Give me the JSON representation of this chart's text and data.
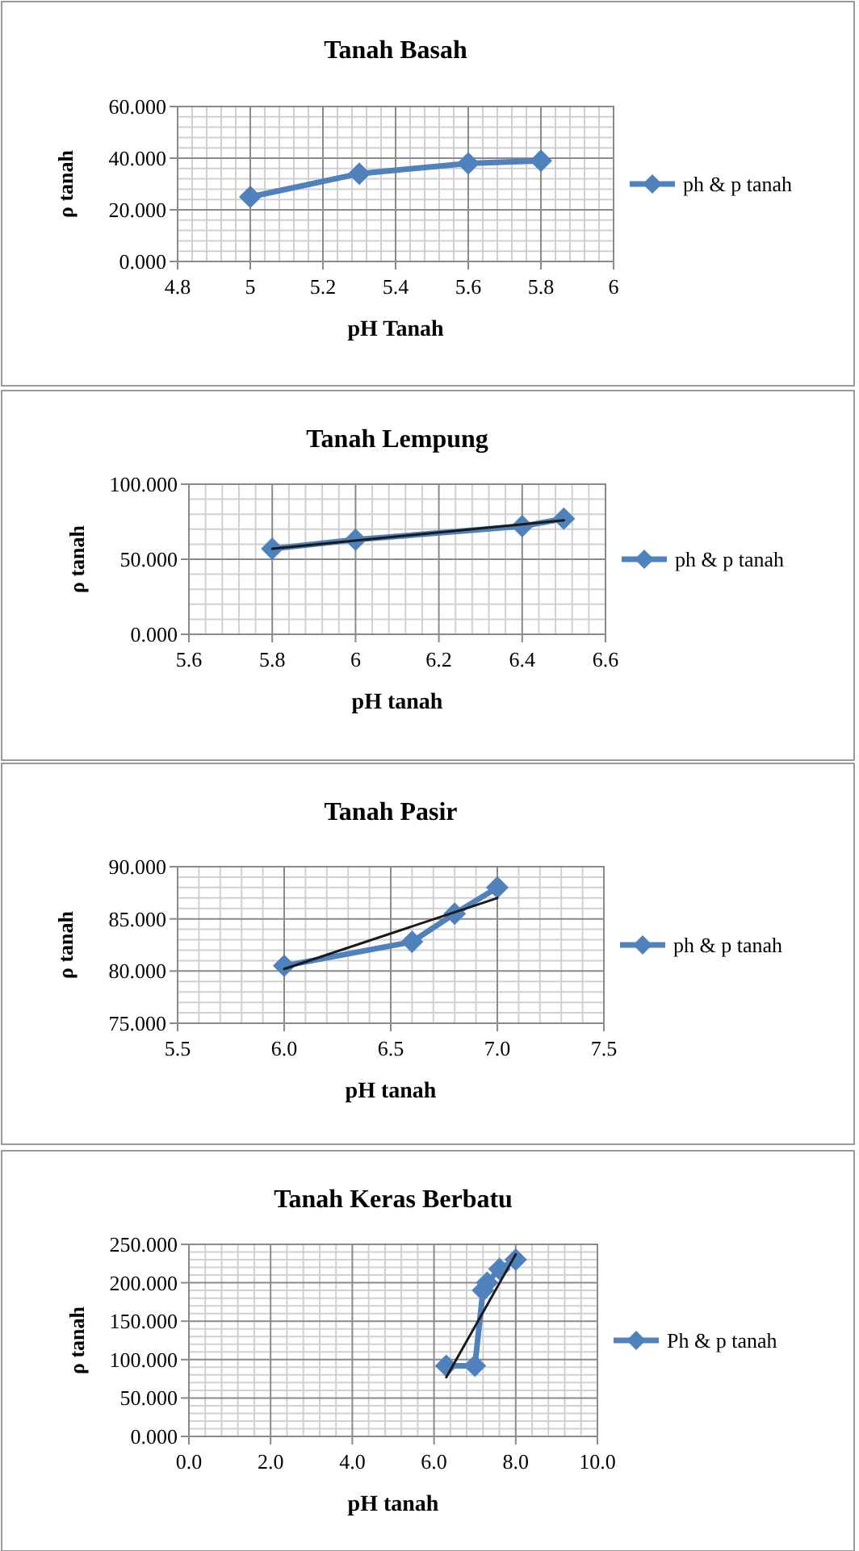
{
  "chart_data": [
    {
      "type": "line",
      "title": "Tanah Basah",
      "xlabel": "pH  Tanah",
      "ylabel": "ρ tanah",
      "xlim": [
        4.8,
        6
      ],
      "xticks": [
        4.8,
        5,
        5.2,
        5.4,
        5.6,
        5.8,
        6
      ],
      "ylim": [
        0,
        60
      ],
      "yticks": [
        {
          "value": 0,
          "label": "0.000"
        },
        {
          "value": 20,
          "label": "20.000"
        },
        {
          "value": 40,
          "label": "40.000"
        },
        {
          "value": 60,
          "label": "60.000"
        }
      ],
      "grid": true,
      "legend": "right",
      "marker": "diamond",
      "series": [
        {
          "name": "ph & p tanah",
          "color": "#4f81bd",
          "x": [
            5,
            5.3,
            5.6,
            5.8
          ],
          "values": [
            25,
            34,
            38,
            39
          ]
        }
      ]
    },
    {
      "type": "line",
      "title": "Tanah Lempung",
      "xlabel": "pH  tanah",
      "ylabel": "ρ tanah",
      "xlim": [
        5.6,
        6.6
      ],
      "xticks": [
        5.6,
        5.8,
        6,
        6.2,
        6.4,
        6.6
      ],
      "ylim": [
        0,
        100
      ],
      "yticks": [
        {
          "value": 0,
          "label": "0.000"
        },
        {
          "value": 50,
          "label": "50.000"
        },
        {
          "value": 100,
          "label": "100.000"
        }
      ],
      "grid": true,
      "legend": "right",
      "marker": "diamond",
      "series": [
        {
          "name": "ph & p tanah",
          "color": "#4f81bd",
          "x": [
            5.8,
            6,
            6.4,
            6.5
          ],
          "values": [
            57,
            63,
            72,
            77
          ]
        },
        {
          "color": "#1a1a1a",
          "marker": "none",
          "x": [
            5.8,
            6.5
          ],
          "values": [
            57,
            76
          ]
        }
      ]
    },
    {
      "type": "line",
      "title": "Tanah Pasir",
      "xlabel": "pH  tanah",
      "ylabel": "ρ tanah",
      "xlim": [
        5.5,
        7.5
      ],
      "xticks": [
        {
          "value": 5.5,
          "label": "5.5"
        },
        {
          "value": 6,
          "label": "6.0"
        },
        {
          "value": 6.5,
          "label": "6.5"
        },
        {
          "value": 7,
          "label": "7.0"
        },
        {
          "value": 7.5,
          "label": "7.5"
        }
      ],
      "ylim": [
        75,
        90
      ],
      "yticks": [
        {
          "value": 75,
          "label": "75.000"
        },
        {
          "value": 80,
          "label": "80.000"
        },
        {
          "value": 85,
          "label": "85.000"
        },
        {
          "value": 90,
          "label": "90.000"
        }
      ],
      "grid": true,
      "legend": "right",
      "marker": "diamond",
      "series": [
        {
          "name": "ph & p tanah",
          "color": "#4f81bd",
          "x": [
            6,
            6.6,
            6.8,
            7
          ],
          "values": [
            80.5,
            82.8,
            85.5,
            88
          ]
        },
        {
          "color": "#1a1a1a",
          "marker": "none",
          "x": [
            6,
            7
          ],
          "values": [
            80.2,
            87
          ]
        }
      ]
    },
    {
      "type": "line",
      "title": "Tanah Keras Berbatu",
      "xlabel": "pH  tanah",
      "ylabel": "ρ tanah",
      "xlim": [
        0,
        10
      ],
      "xticks": [
        {
          "value": 0,
          "label": "0.0"
        },
        {
          "value": 2,
          "label": "2.0"
        },
        {
          "value": 4,
          "label": "4.0"
        },
        {
          "value": 6,
          "label": "6.0"
        },
        {
          "value": 8,
          "label": "8.0"
        },
        {
          "value": 10,
          "label": "10.0"
        }
      ],
      "ylim": [
        0,
        250
      ],
      "yticks": [
        {
          "value": 0,
          "label": "0.000"
        },
        {
          "value": 50,
          "label": "50.000"
        },
        {
          "value": 100,
          "label": "100.000"
        },
        {
          "value": 150,
          "label": "150.000"
        },
        {
          "value": 200,
          "label": "200.000"
        },
        {
          "value": 250,
          "label": "250.000"
        }
      ],
      "grid": true,
      "legend": "right",
      "marker": "diamond",
      "series": [
        {
          "name": "Ph & p tanah",
          "color": "#4f81bd",
          "x": [
            6.3,
            7,
            7.2,
            7.3,
            7.6,
            8
          ],
          "values": [
            92,
            92,
            190,
            200,
            218,
            230
          ]
        },
        {
          "color": "#1a1a1a",
          "marker": "none",
          "x": [
            6.3,
            8
          ],
          "values": [
            77,
            237
          ]
        }
      ]
    }
  ]
}
